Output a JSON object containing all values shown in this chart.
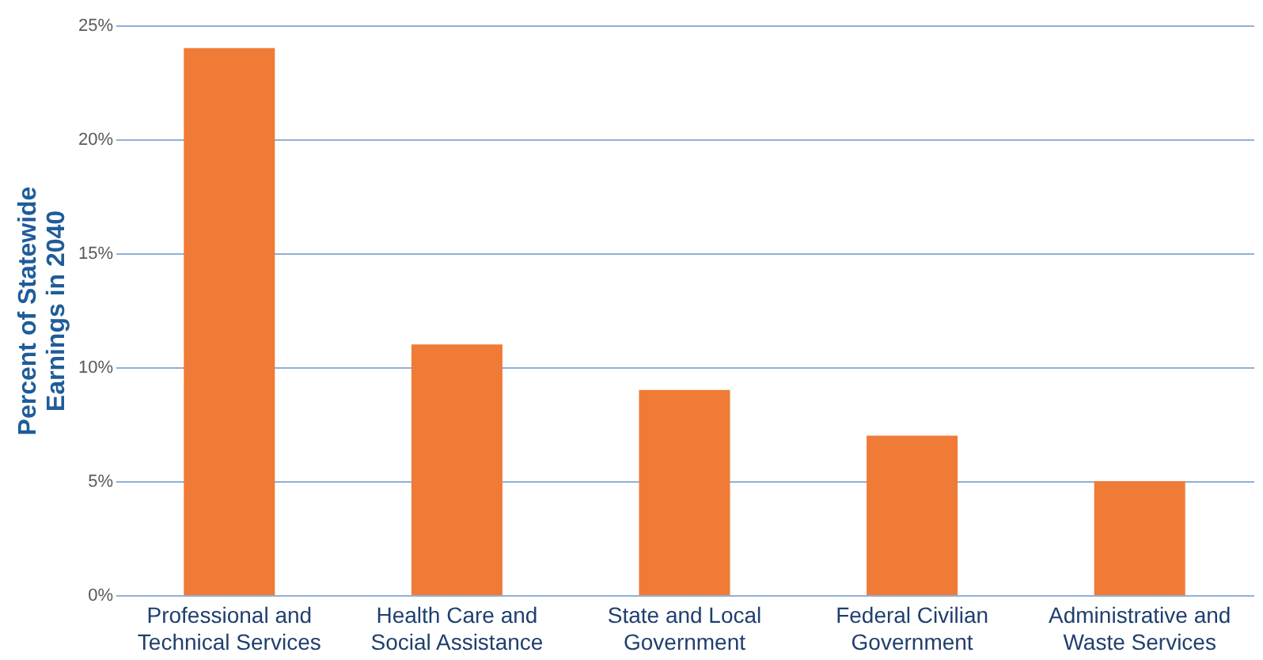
{
  "chart_data": {
    "type": "bar",
    "ylabel": "Percent of Statewide Earnings in 2040",
    "categories": [
      "Professional and Technical Services",
      "Health Care and Social Assistance",
      "State and Local Government",
      "Federal Civilian Government",
      "Administrative and Waste Services"
    ],
    "values": [
      24,
      11,
      9,
      7,
      5
    ],
    "color": "#f07b37",
    "ylim": [
      0,
      25
    ],
    "yticks": [
      {
        "value": 0,
        "label": "0%"
      },
      {
        "value": 5,
        "label": "5%"
      },
      {
        "value": 10,
        "label": "10%"
      },
      {
        "value": 15,
        "label": "15%"
      },
      {
        "value": 20,
        "label": "20%"
      },
      {
        "value": 25,
        "label": "25%"
      }
    ],
    "grid": "y"
  }
}
